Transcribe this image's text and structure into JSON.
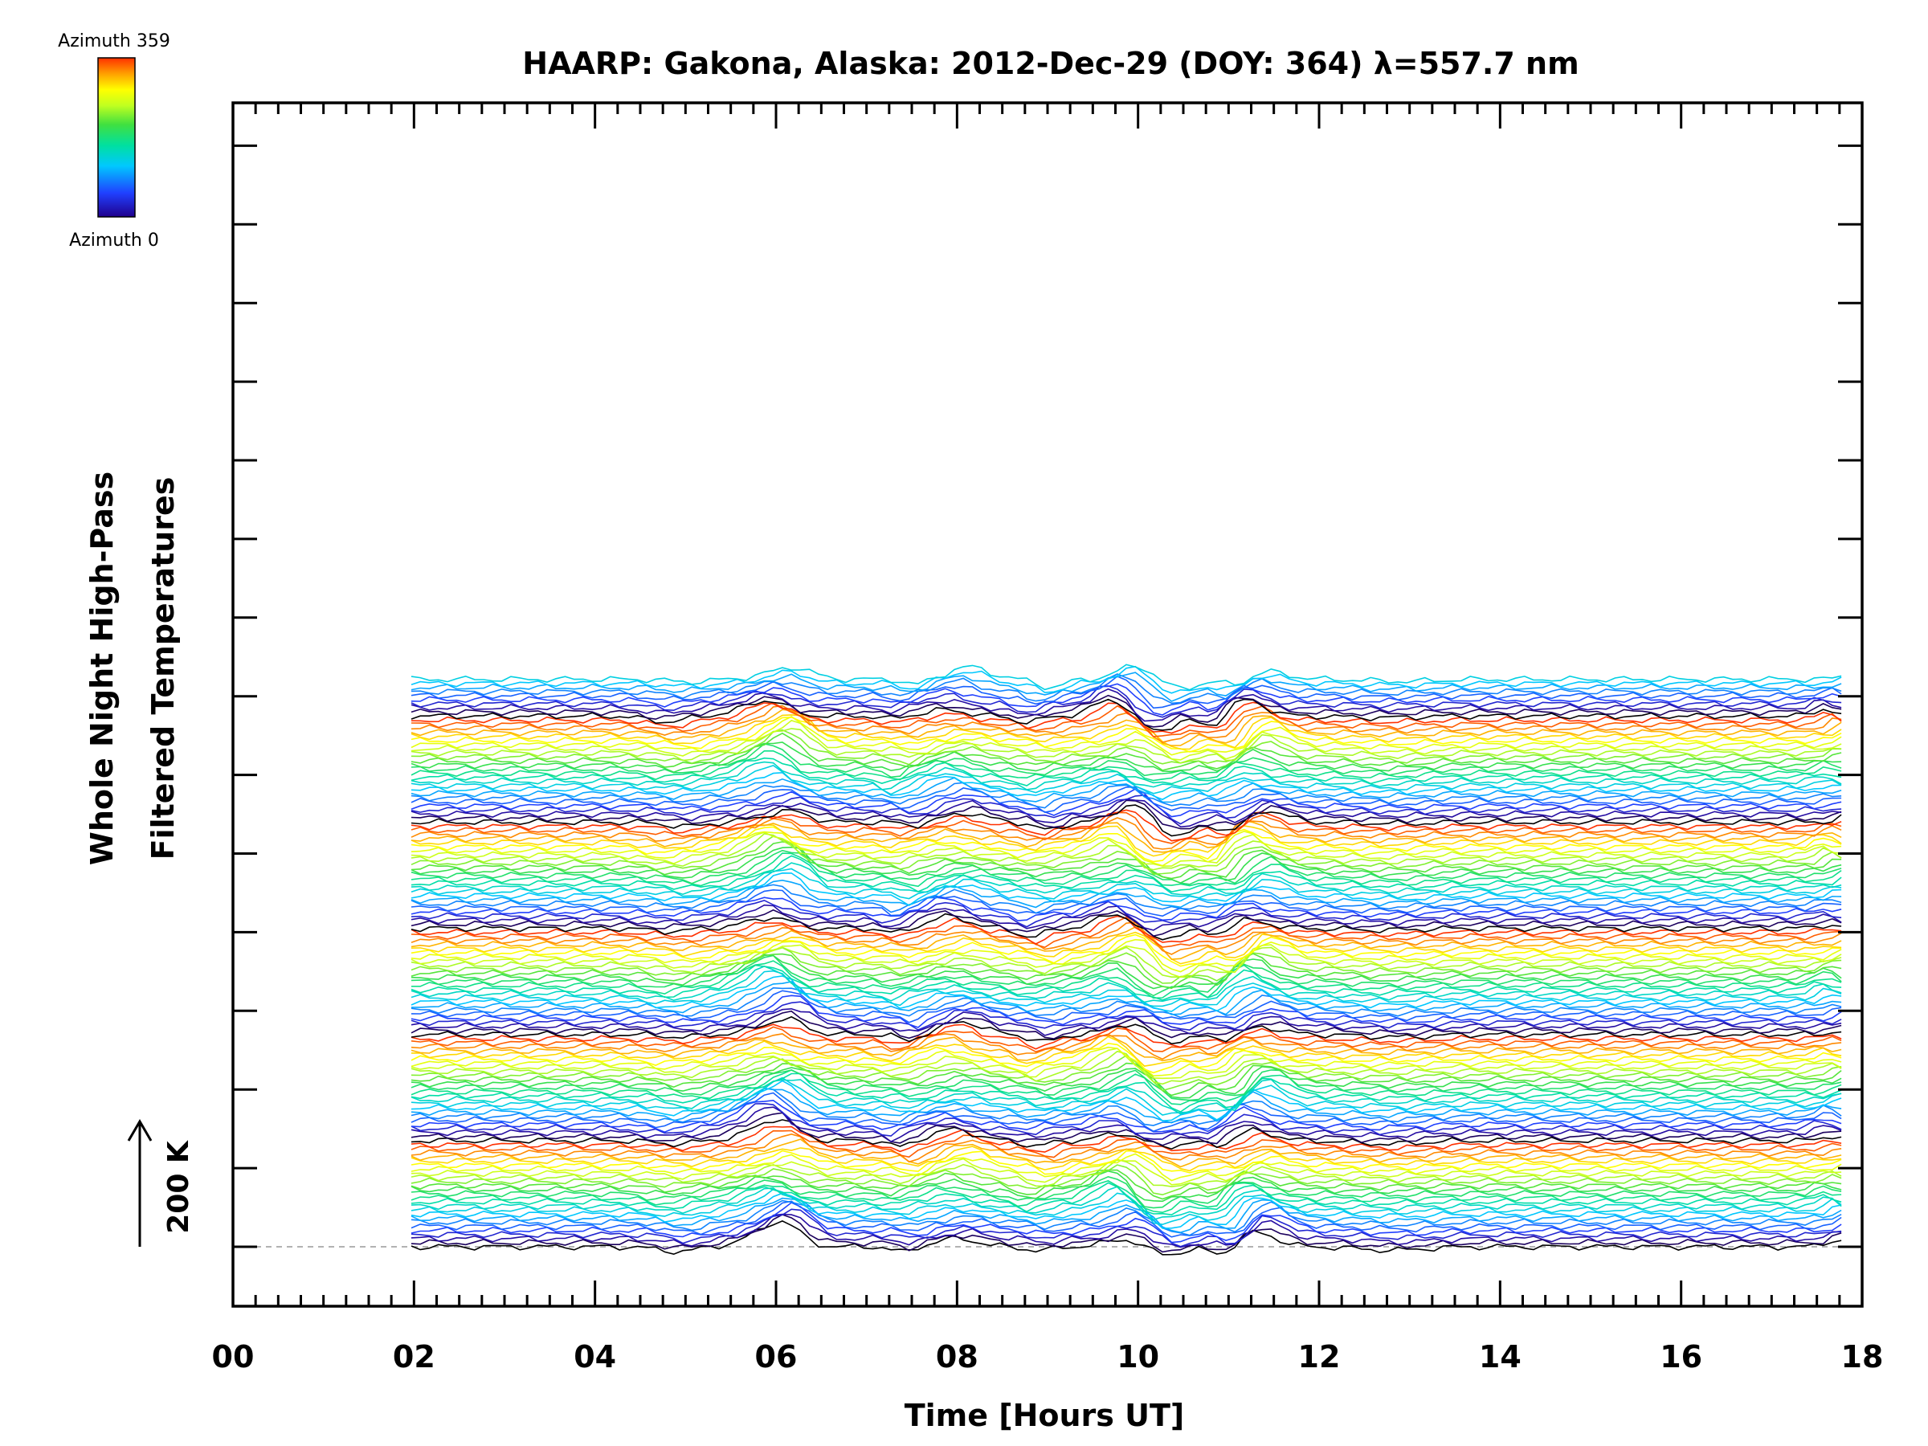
{
  "chart_data": {
    "type": "line",
    "title": "HAARP: Gakona,  Alaska: 2012-Dec-29 (DOY: 364) λ=557.7 nm",
    "xlabel": "Time [Hours UT]",
    "ylabel_line1": "Whole Night High-Pass",
    "ylabel_line2": "Filtered Temperatures",
    "xlim": [
      0,
      18
    ],
    "x_ticks": [
      "00",
      "02",
      "04",
      "06",
      "08",
      "10",
      "12",
      "14",
      "16",
      "18"
    ],
    "x_data_range": [
      1.97,
      17.85
    ],
    "scale_bar": {
      "label": "200 K",
      "kelvin": 200
    },
    "colorbar": {
      "label_top": "Azimuth 359",
      "label_bottom": "Azimuth 0",
      "colors": [
        "#20008c",
        "#2040ff",
        "#00c8ff",
        "#00e0a0",
        "#40e040",
        "#c0ff20",
        "#ffff00",
        "#ffa000",
        "#ff3000"
      ]
    },
    "series_count": 140,
    "line_spacing_kelvin": 20,
    "series_color_cycle_period": 26,
    "grid": false,
    "legend": "none"
  }
}
